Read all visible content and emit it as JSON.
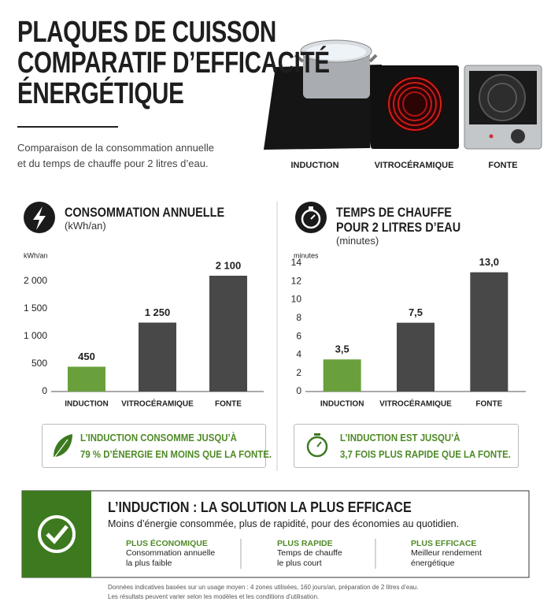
{
  "header": {
    "title_lines": [
      "PLAQUES DE CUISSON",
      "COMPARATIF D’EFFICACITÉ",
      "ÉNERGÉTIQUE"
    ],
    "description_lines": [
      "Comparaison de la consommation annuelle",
      "et du temps de chauffe pour 2 litres d’eau."
    ]
  },
  "products": [
    "INDUCTION",
    "VITROCÉRAMIQUE",
    "FONTE"
  ],
  "chart_data": [
    {
      "type": "bar",
      "title": "CONSOMMATION ANNUELLE",
      "subtitle": "(kWh/an)",
      "y_label": "kWh/an",
      "categories": [
        "INDUCTION",
        "VITROCÉRAMIQUE",
        "FONTE"
      ],
      "values": [
        450,
        1250,
        2100
      ],
      "value_labels": [
        "450",
        "1 250",
        "2 100"
      ],
      "colors": [
        "#6aa03c",
        "#484848",
        "#484848"
      ],
      "ylim": [
        0,
        2200
      ],
      "yticks": [
        0,
        500,
        {
          "value": 1000,
          "label": "1 000"
        },
        {
          "value": 1500,
          "label": "1 500"
        },
        {
          "value": 2000,
          "label": "2 000"
        }
      ],
      "grid": false
    },
    {
      "type": "bar",
      "title_lines": [
        "TEMPS DE CHAUFFE",
        "POUR 2 LITRES D’EAU"
      ],
      "subtitle": "(minutes)",
      "y_label": "minutes",
      "categories": [
        "INDUCTION",
        "VITROCÉRAMIQUE",
        "FONTE"
      ],
      "values": [
        3.5,
        7.5,
        13.0
      ],
      "value_labels": [
        "3,5",
        "7,5",
        "13,0"
      ],
      "colors": [
        "#6aa03c",
        "#484848",
        "#484848"
      ],
      "ylim": [
        0,
        14
      ],
      "yticks": [
        0,
        2,
        4,
        6,
        8,
        10,
        12,
        14
      ],
      "grid": false
    }
  ],
  "callouts": [
    {
      "lines": [
        "L’INDUCTION CONSOMME JUSQU’À",
        "79 % D’ÉNERGIE EN MOINS QUE LA FONTE."
      ]
    },
    {
      "lines": [
        "L’INDUCTION EST JUSQU’À",
        "3,7 FOIS PLUS RAPIDE QUE LA FONTE."
      ]
    }
  ],
  "conclusion": {
    "title": "L’INDUCTION : LA SOLUTION LA PLUS EFFICACE",
    "subtitle": "Moins d’énergie consommée, plus de rapidité, pour des économies au quotidien.",
    "columns": [
      {
        "heading": "PLUS ÉCONOMIQUE",
        "lines": [
          "Consommation annuelle",
          "la plus faible"
        ]
      },
      {
        "heading": "PLUS RAPIDE",
        "lines": [
          "Temps de chauffe",
          "le plus court"
        ]
      },
      {
        "heading": "PLUS EFFICACE",
        "lines": [
          "Meilleur rendement",
          "énergétique"
        ]
      }
    ]
  },
  "footer_lines": [
    "Données indicatives basées sur un usage moyen : 4 zones utilisées, 160 jours/an, préparation de 2 litres d’eau.",
    "Les résultats peuvent varier selon les modèles et les conditions d’utilisation."
  ]
}
